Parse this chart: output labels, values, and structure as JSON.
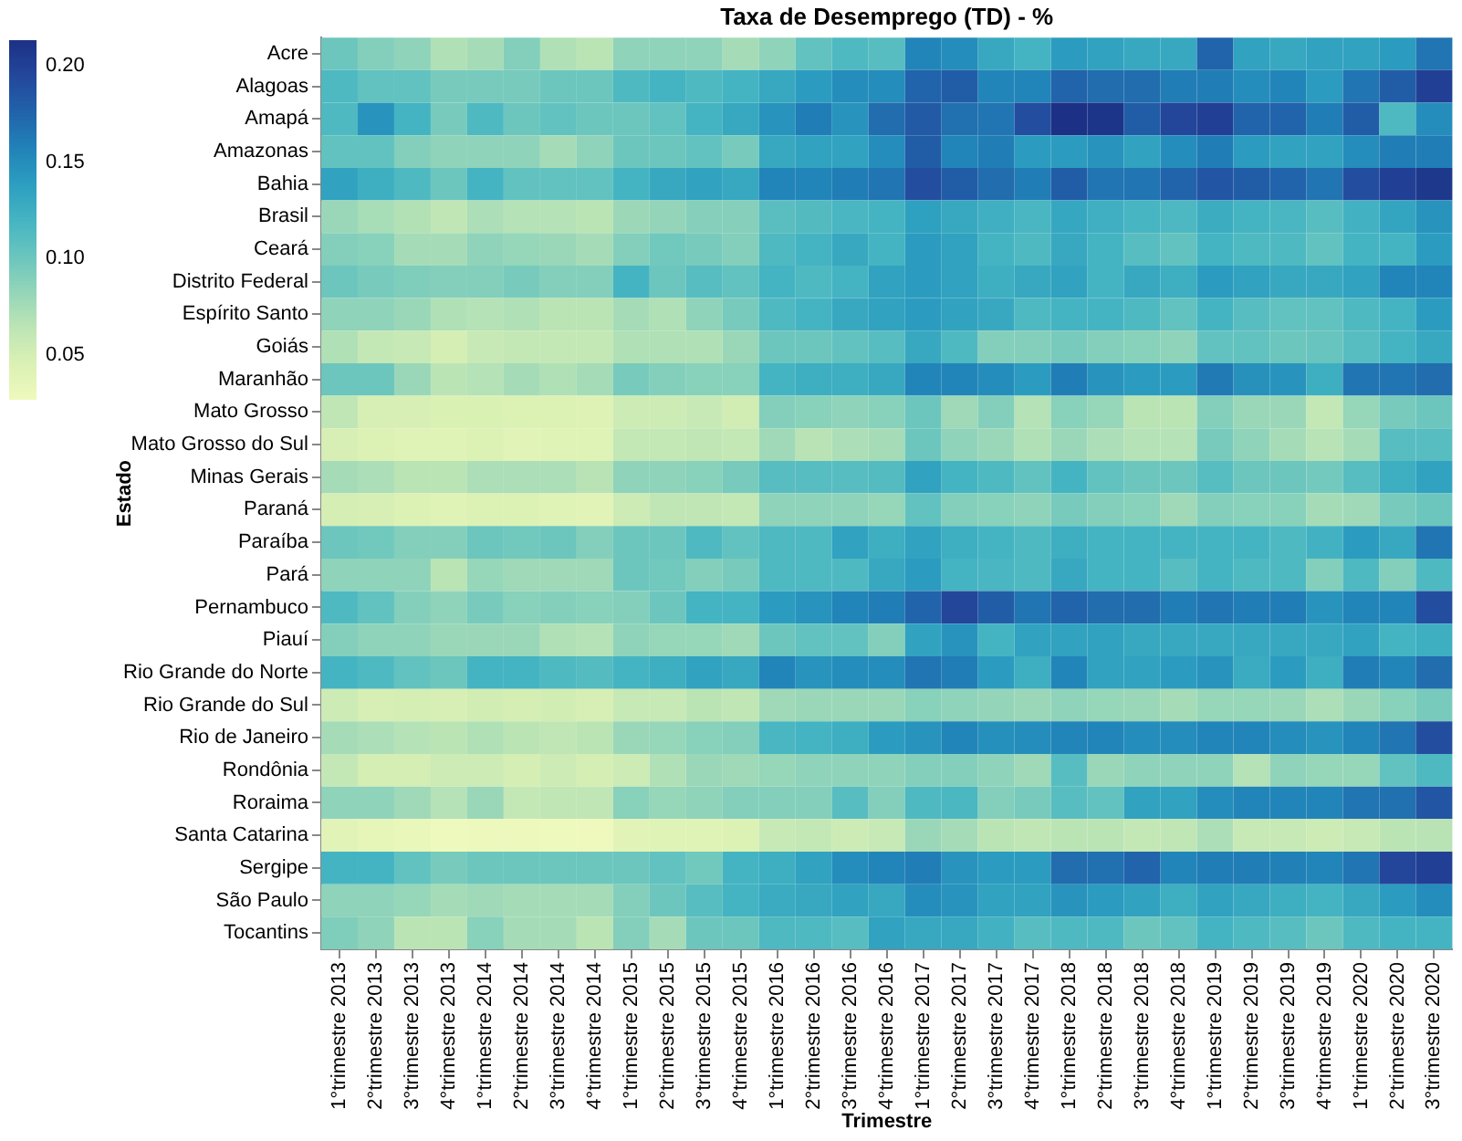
{
  "chart_data": {
    "type": "heatmap",
    "title": "Taxa de Desemprego (TD) - %",
    "xlabel": "Trimestre",
    "ylabel": "Estado",
    "categories": [
      "1°trimestre 2013",
      "2°trimestre 2013",
      "3°trimestre 2013",
      "4°trimestre 2013",
      "1°trimestre 2014",
      "2°trimestre 2014",
      "3°trimestre 2014",
      "4°trimestre 2014",
      "1°trimestre 2015",
      "2°trimestre 2015",
      "3°trimestre 2015",
      "4°trimestre 2015",
      "1°trimestre 2016",
      "2°trimestre 2016",
      "3°trimestre 2016",
      "4°trimestre 2016",
      "1°trimestre 2017",
      "2°trimestre 2017",
      "3°trimestre 2017",
      "4°trimestre 2017",
      "1°trimestre 2018",
      "2°trimestre 2018",
      "3°trimestre 2018",
      "4°trimestre 2018",
      "1°trimestre 2019",
      "2°trimestre 2019",
      "3°trimestre 2019",
      "4°trimestre 2019",
      "1°trimestre 2020",
      "2°trimestre 2020",
      "3°trimestre 2020"
    ],
    "y_categories": [
      "Acre",
      "Alagoas",
      "Amapá",
      "Amazonas",
      "Bahia",
      "Brasil",
      "Ceará",
      "Distrito Federal",
      "Espírito Santo",
      "Goiás",
      "Maranhão",
      "Mato Grosso",
      "Mato Grosso do Sul",
      "Minas Gerais",
      "Paraná",
      "Paraíba",
      "Pará",
      "Pernambuco",
      "Piauí",
      "Rio Grande do Norte",
      "Rio Grande do Sul",
      "Rio de Janeiro",
      "Rondônia",
      "Roraima",
      "Santa Catarina",
      "Sergipe",
      "São Paulo",
      "Tocantins"
    ],
    "cells": [
      [
        0.1,
        0.09,
        0.085,
        0.07,
        0.075,
        0.09,
        0.07,
        0.065,
        0.085,
        0.085,
        0.085,
        0.075,
        0.085,
        0.105,
        0.115,
        0.11,
        0.155,
        0.15,
        0.13,
        0.12,
        0.14,
        0.135,
        0.13,
        0.13,
        0.175,
        0.135,
        0.13,
        0.135,
        0.135,
        0.14,
        0.165
      ],
      [
        0.115,
        0.105,
        0.105,
        0.095,
        0.095,
        0.095,
        0.1,
        0.1,
        0.115,
        0.12,
        0.115,
        0.12,
        0.13,
        0.14,
        0.15,
        0.15,
        0.175,
        0.18,
        0.155,
        0.155,
        0.175,
        0.17,
        0.17,
        0.16,
        0.16,
        0.15,
        0.155,
        0.14,
        0.165,
        0.18,
        0.2
      ],
      [
        0.115,
        0.145,
        0.12,
        0.095,
        0.115,
        0.1,
        0.105,
        0.1,
        0.1,
        0.105,
        0.12,
        0.13,
        0.145,
        0.16,
        0.145,
        0.17,
        0.182,
        0.168,
        0.165,
        0.19,
        0.213,
        0.21,
        0.18,
        0.195,
        0.2,
        0.175,
        0.175,
        0.16,
        0.18,
        0.115,
        0.15
      ],
      [
        0.105,
        0.105,
        0.09,
        0.085,
        0.085,
        0.085,
        0.075,
        0.085,
        0.1,
        0.1,
        0.105,
        0.095,
        0.13,
        0.135,
        0.135,
        0.15,
        0.18,
        0.155,
        0.16,
        0.14,
        0.14,
        0.145,
        0.135,
        0.15,
        0.16,
        0.14,
        0.135,
        0.135,
        0.15,
        0.16,
        0.16
      ],
      [
        0.135,
        0.125,
        0.115,
        0.1,
        0.12,
        0.105,
        0.105,
        0.105,
        0.12,
        0.13,
        0.135,
        0.13,
        0.155,
        0.155,
        0.16,
        0.165,
        0.19,
        0.18,
        0.17,
        0.16,
        0.18,
        0.165,
        0.165,
        0.175,
        0.185,
        0.18,
        0.175,
        0.165,
        0.19,
        0.2,
        0.207
      ],
      [
        0.08,
        0.074,
        0.069,
        0.062,
        0.072,
        0.068,
        0.068,
        0.065,
        0.079,
        0.083,
        0.089,
        0.089,
        0.109,
        0.113,
        0.118,
        0.12,
        0.137,
        0.13,
        0.124,
        0.118,
        0.131,
        0.124,
        0.119,
        0.116,
        0.127,
        0.12,
        0.118,
        0.11,
        0.122,
        0.133,
        0.146
      ],
      [
        0.09,
        0.088,
        0.075,
        0.075,
        0.085,
        0.082,
        0.08,
        0.075,
        0.09,
        0.098,
        0.095,
        0.09,
        0.115,
        0.12,
        0.13,
        0.12,
        0.14,
        0.135,
        0.12,
        0.115,
        0.13,
        0.12,
        0.11,
        0.105,
        0.12,
        0.115,
        0.115,
        0.105,
        0.12,
        0.12,
        0.14
      ],
      [
        0.1,
        0.095,
        0.092,
        0.09,
        0.09,
        0.095,
        0.09,
        0.09,
        0.12,
        0.1,
        0.11,
        0.105,
        0.12,
        0.115,
        0.12,
        0.135,
        0.14,
        0.135,
        0.125,
        0.13,
        0.135,
        0.12,
        0.13,
        0.125,
        0.14,
        0.135,
        0.13,
        0.13,
        0.135,
        0.155,
        0.155
      ],
      [
        0.085,
        0.085,
        0.08,
        0.07,
        0.068,
        0.07,
        0.065,
        0.065,
        0.075,
        0.07,
        0.085,
        0.095,
        0.115,
        0.12,
        0.13,
        0.135,
        0.14,
        0.135,
        0.13,
        0.115,
        0.12,
        0.12,
        0.115,
        0.105,
        0.12,
        0.11,
        0.105,
        0.105,
        0.115,
        0.12,
        0.14
      ],
      [
        0.07,
        0.06,
        0.058,
        0.05,
        0.058,
        0.06,
        0.06,
        0.06,
        0.07,
        0.07,
        0.07,
        0.08,
        0.1,
        0.1,
        0.105,
        0.11,
        0.13,
        0.115,
        0.09,
        0.09,
        0.095,
        0.09,
        0.088,
        0.085,
        0.105,
        0.105,
        0.1,
        0.102,
        0.11,
        0.12,
        0.13
      ],
      [
        0.1,
        0.1,
        0.08,
        0.065,
        0.068,
        0.075,
        0.07,
        0.075,
        0.095,
        0.09,
        0.088,
        0.088,
        0.12,
        0.125,
        0.125,
        0.13,
        0.155,
        0.155,
        0.15,
        0.14,
        0.16,
        0.145,
        0.14,
        0.14,
        0.162,
        0.147,
        0.145,
        0.125,
        0.165,
        0.165,
        0.17
      ],
      [
        0.062,
        0.048,
        0.048,
        0.046,
        0.046,
        0.045,
        0.045,
        0.043,
        0.055,
        0.055,
        0.058,
        0.052,
        0.09,
        0.088,
        0.085,
        0.088,
        0.1,
        0.078,
        0.09,
        0.068,
        0.088,
        0.082,
        0.065,
        0.065,
        0.09,
        0.08,
        0.08,
        0.06,
        0.082,
        0.095,
        0.1
      ],
      [
        0.048,
        0.045,
        0.042,
        0.042,
        0.045,
        0.04,
        0.042,
        0.042,
        0.06,
        0.06,
        0.062,
        0.06,
        0.078,
        0.066,
        0.072,
        0.075,
        0.1,
        0.085,
        0.08,
        0.07,
        0.08,
        0.072,
        0.068,
        0.068,
        0.095,
        0.085,
        0.075,
        0.067,
        0.075,
        0.11,
        0.11
      ],
      [
        0.075,
        0.072,
        0.065,
        0.065,
        0.072,
        0.072,
        0.072,
        0.066,
        0.085,
        0.085,
        0.088,
        0.095,
        0.11,
        0.11,
        0.11,
        0.112,
        0.135,
        0.12,
        0.115,
        0.105,
        0.12,
        0.105,
        0.1,
        0.1,
        0.11,
        0.1,
        0.1,
        0.097,
        0.11,
        0.125,
        0.135
      ],
      [
        0.05,
        0.048,
        0.045,
        0.042,
        0.045,
        0.045,
        0.042,
        0.04,
        0.055,
        0.062,
        0.062,
        0.06,
        0.085,
        0.085,
        0.085,
        0.082,
        0.105,
        0.09,
        0.088,
        0.085,
        0.095,
        0.09,
        0.088,
        0.078,
        0.09,
        0.088,
        0.088,
        0.075,
        0.078,
        0.095,
        0.1
      ],
      [
        0.1,
        0.098,
        0.09,
        0.09,
        0.1,
        0.098,
        0.1,
        0.09,
        0.1,
        0.1,
        0.115,
        0.105,
        0.115,
        0.115,
        0.135,
        0.125,
        0.135,
        0.125,
        0.12,
        0.115,
        0.125,
        0.12,
        0.12,
        0.12,
        0.12,
        0.12,
        0.115,
        0.122,
        0.14,
        0.13,
        0.165
      ],
      [
        0.085,
        0.085,
        0.085,
        0.065,
        0.082,
        0.078,
        0.078,
        0.078,
        0.1,
        0.098,
        0.09,
        0.095,
        0.115,
        0.115,
        0.115,
        0.13,
        0.14,
        0.12,
        0.118,
        0.115,
        0.13,
        0.12,
        0.12,
        0.11,
        0.12,
        0.115,
        0.115,
        0.09,
        0.115,
        0.09,
        0.115
      ],
      [
        0.115,
        0.105,
        0.09,
        0.085,
        0.095,
        0.088,
        0.09,
        0.088,
        0.09,
        0.1,
        0.12,
        0.12,
        0.14,
        0.145,
        0.155,
        0.16,
        0.175,
        0.195,
        0.18,
        0.165,
        0.175,
        0.17,
        0.17,
        0.16,
        0.165,
        0.16,
        0.16,
        0.145,
        0.155,
        0.155,
        0.19
      ],
      [
        0.09,
        0.085,
        0.085,
        0.08,
        0.08,
        0.08,
        0.07,
        0.068,
        0.085,
        0.082,
        0.082,
        0.078,
        0.1,
        0.105,
        0.105,
        0.09,
        0.135,
        0.145,
        0.12,
        0.135,
        0.135,
        0.135,
        0.13,
        0.13,
        0.13,
        0.13,
        0.13,
        0.13,
        0.135,
        0.12,
        0.125
      ],
      [
        0.12,
        0.115,
        0.105,
        0.1,
        0.12,
        0.12,
        0.115,
        0.112,
        0.12,
        0.125,
        0.135,
        0.13,
        0.155,
        0.145,
        0.15,
        0.15,
        0.165,
        0.16,
        0.14,
        0.125,
        0.155,
        0.135,
        0.135,
        0.14,
        0.145,
        0.128,
        0.14,
        0.125,
        0.16,
        0.155,
        0.17
      ],
      [
        0.055,
        0.048,
        0.05,
        0.048,
        0.052,
        0.05,
        0.052,
        0.048,
        0.058,
        0.058,
        0.065,
        0.062,
        0.078,
        0.08,
        0.08,
        0.08,
        0.088,
        0.085,
        0.083,
        0.08,
        0.085,
        0.082,
        0.08,
        0.075,
        0.082,
        0.082,
        0.08,
        0.072,
        0.08,
        0.088,
        0.095
      ],
      [
        0.075,
        0.072,
        0.068,
        0.065,
        0.07,
        0.065,
        0.062,
        0.065,
        0.08,
        0.082,
        0.088,
        0.09,
        0.118,
        0.12,
        0.125,
        0.14,
        0.145,
        0.155,
        0.148,
        0.15,
        0.155,
        0.155,
        0.15,
        0.15,
        0.155,
        0.155,
        0.15,
        0.145,
        0.155,
        0.165,
        0.19
      ],
      [
        0.06,
        0.05,
        0.05,
        0.055,
        0.055,
        0.05,
        0.055,
        0.05,
        0.055,
        0.07,
        0.08,
        0.078,
        0.082,
        0.085,
        0.085,
        0.085,
        0.09,
        0.09,
        0.085,
        0.078,
        0.11,
        0.08,
        0.085,
        0.085,
        0.085,
        0.068,
        0.085,
        0.082,
        0.082,
        0.105,
        0.115
      ],
      [
        0.085,
        0.085,
        0.078,
        0.068,
        0.08,
        0.06,
        0.062,
        0.062,
        0.088,
        0.082,
        0.085,
        0.09,
        0.09,
        0.09,
        0.11,
        0.09,
        0.115,
        0.117,
        0.09,
        0.095,
        0.11,
        0.105,
        0.135,
        0.135,
        0.15,
        0.155,
        0.155,
        0.155,
        0.165,
        0.168,
        0.185
      ],
      [
        0.04,
        0.035,
        0.032,
        0.028,
        0.03,
        0.03,
        0.028,
        0.027,
        0.04,
        0.042,
        0.042,
        0.045,
        0.058,
        0.06,
        0.055,
        0.058,
        0.08,
        0.075,
        0.065,
        0.062,
        0.065,
        0.065,
        0.06,
        0.062,
        0.072,
        0.058,
        0.058,
        0.055,
        0.058,
        0.065,
        0.066
      ],
      [
        0.12,
        0.12,
        0.105,
        0.095,
        0.1,
        0.1,
        0.1,
        0.1,
        0.1,
        0.105,
        0.098,
        0.12,
        0.125,
        0.135,
        0.15,
        0.155,
        0.16,
        0.145,
        0.14,
        0.14,
        0.17,
        0.168,
        0.175,
        0.155,
        0.16,
        0.16,
        0.158,
        0.155,
        0.165,
        0.195,
        0.2
      ],
      [
        0.085,
        0.085,
        0.082,
        0.075,
        0.078,
        0.075,
        0.075,
        0.075,
        0.09,
        0.1,
        0.11,
        0.12,
        0.128,
        0.13,
        0.135,
        0.13,
        0.15,
        0.145,
        0.135,
        0.135,
        0.145,
        0.14,
        0.135,
        0.125,
        0.135,
        0.13,
        0.125,
        0.12,
        0.13,
        0.14,
        0.15
      ],
      [
        0.092,
        0.085,
        0.065,
        0.065,
        0.088,
        0.075,
        0.075,
        0.065,
        0.09,
        0.075,
        0.1,
        0.1,
        0.115,
        0.115,
        0.11,
        0.135,
        0.13,
        0.13,
        0.122,
        0.11,
        0.115,
        0.115,
        0.1,
        0.105,
        0.12,
        0.115,
        0.11,
        0.1,
        0.115,
        0.12,
        0.12
      ]
    ],
    "clim": [
      0.027,
      0.213
    ],
    "cticks": [
      {
        "value": 0.05,
        "label": "0.05"
      },
      {
        "value": 0.1,
        "label": "0.10"
      },
      {
        "value": 0.15,
        "label": "0.15"
      },
      {
        "value": 0.2,
        "label": "0.20"
      }
    ]
  }
}
